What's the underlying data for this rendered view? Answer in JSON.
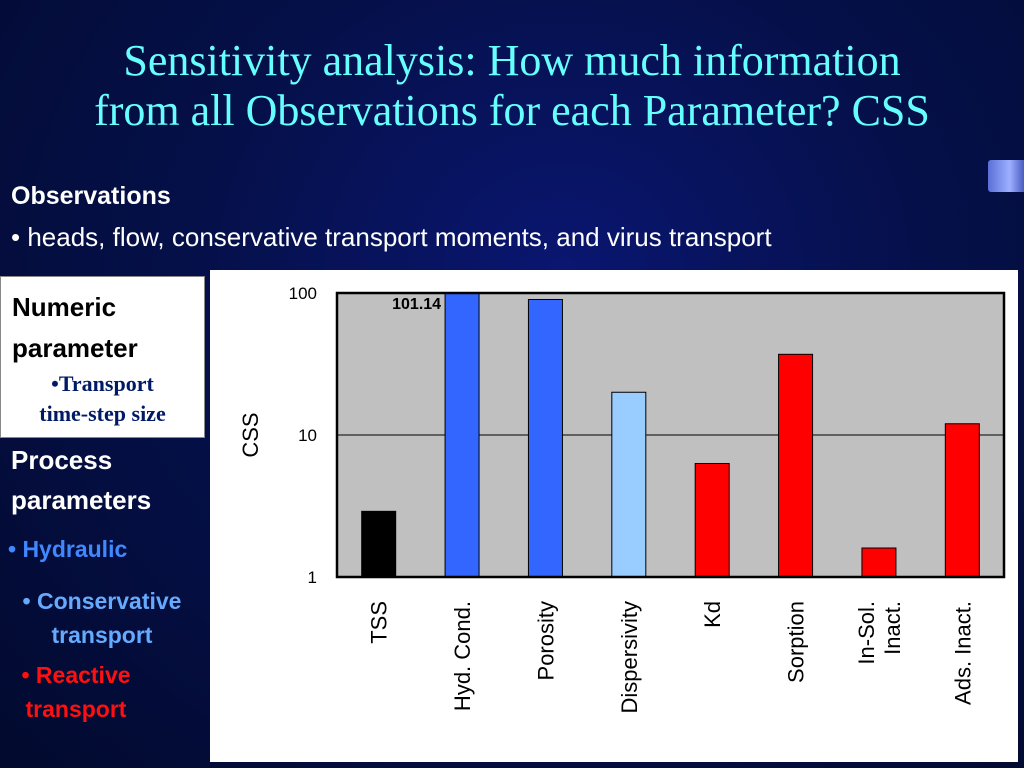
{
  "slide": {
    "title_line1": "Sensitivity analysis: How much information",
    "title_line2": "from all Observations for each Parameter? CSS",
    "observations": {
      "heading": "Observations",
      "item": "• heads, flow, conservative transport moments, and virus transport"
    },
    "numeric": {
      "heading": "Numeric parameter",
      "item_line1": "•Transport",
      "item_line2": "time-step size"
    },
    "process": {
      "heading": "Process parameters",
      "hydraulic": "• Hydraulic",
      "conservative_line1": "• Conservative",
      "conservative_line2": "transport",
      "reactive_line1": "• Reactive",
      "reactive_line2": "transport"
    }
  },
  "chart_data": {
    "type": "bar",
    "title": "",
    "xlabel": "",
    "ylabel": "CSS",
    "yscale": "log",
    "ylim": [
      1,
      100
    ],
    "yticks": [
      "1",
      "10",
      "100"
    ],
    "grid": "horizontal at decades",
    "categories": [
      "TSS",
      "Hyd. Cond.",
      "Porosity",
      "Dispersivity",
      "Kd",
      "Sorption",
      "In-Sol.\nInact.",
      "Ads. Inact."
    ],
    "values": [
      2.9,
      101.14,
      90,
      20,
      6.3,
      37,
      1.6,
      12
    ],
    "colors": [
      "#000000",
      "#3366ff",
      "#3366ff",
      "#99ccff",
      "#ff0000",
      "#ff0000",
      "#ff0000",
      "#ff0000"
    ],
    "annotations": [
      {
        "category": "Hyd. Cond.",
        "text": "101.14"
      }
    ],
    "plot_background": "#c0c0c0"
  }
}
